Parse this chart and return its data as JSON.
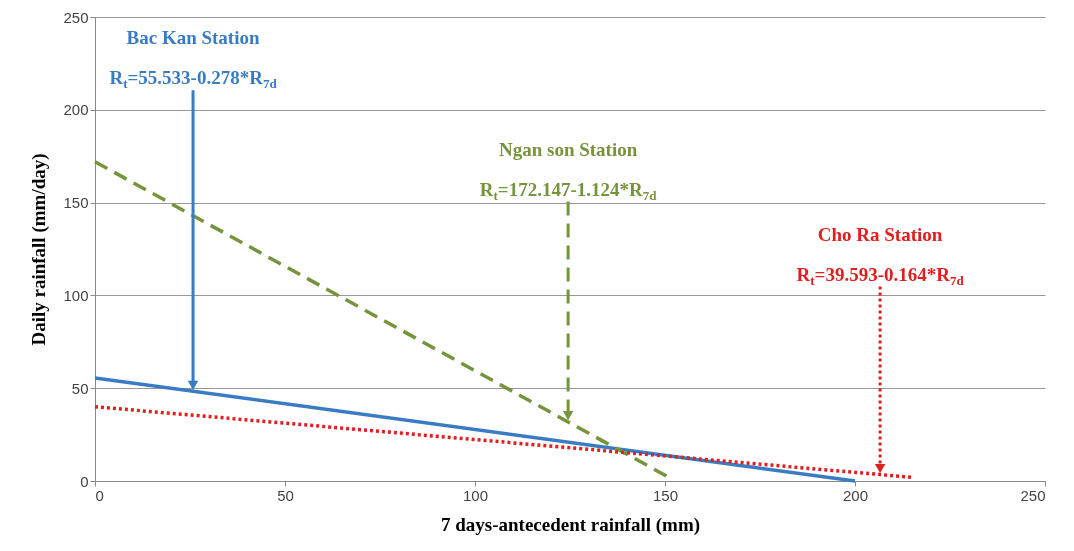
{
  "chart_data": {
    "type": "line",
    "xlabel": "7 days-antecedent rainfall (mm)",
    "ylabel": "Daily rainfall (mm/day)",
    "xlim": [
      0,
      250
    ],
    "xticks": [
      0,
      50,
      100,
      150,
      200,
      250
    ],
    "ylim": [
      0,
      250
    ],
    "yticks": [
      0,
      50,
      100,
      150,
      200,
      250
    ],
    "grid": "y",
    "marker": "none",
    "series": [
      {
        "name": "Bac Kan Station",
        "color": "#3a7cc4",
        "line_style": "solid",
        "x": [
          0,
          200
        ],
        "values": [
          55.5,
          0
        ]
      },
      {
        "name": "Ngan son Station",
        "color": "#77933c",
        "line_style": "dashed",
        "x": [
          0,
          151
        ],
        "values": [
          172,
          2
        ]
      },
      {
        "name": "Cho Ra Station",
        "color": "#e02020",
        "line_style": "dotted",
        "x": [
          0,
          215
        ],
        "values": [
          40,
          2
        ]
      }
    ],
    "annotations": [
      {
        "text": "R$_{t}$=55.533-0.278*R$_{7d}$",
        "x": 25.8,
        "y": 48.3
      },
      {
        "text": "R$_{t}$=172.147-1.124*R$_{7d}$",
        "x": 124.5,
        "y": 32
      },
      {
        "text": "R$_{t}$=39.593-0.164*R$_{7d}$",
        "x": 206.6,
        "y": 3.5
      }
    ]
  }
}
